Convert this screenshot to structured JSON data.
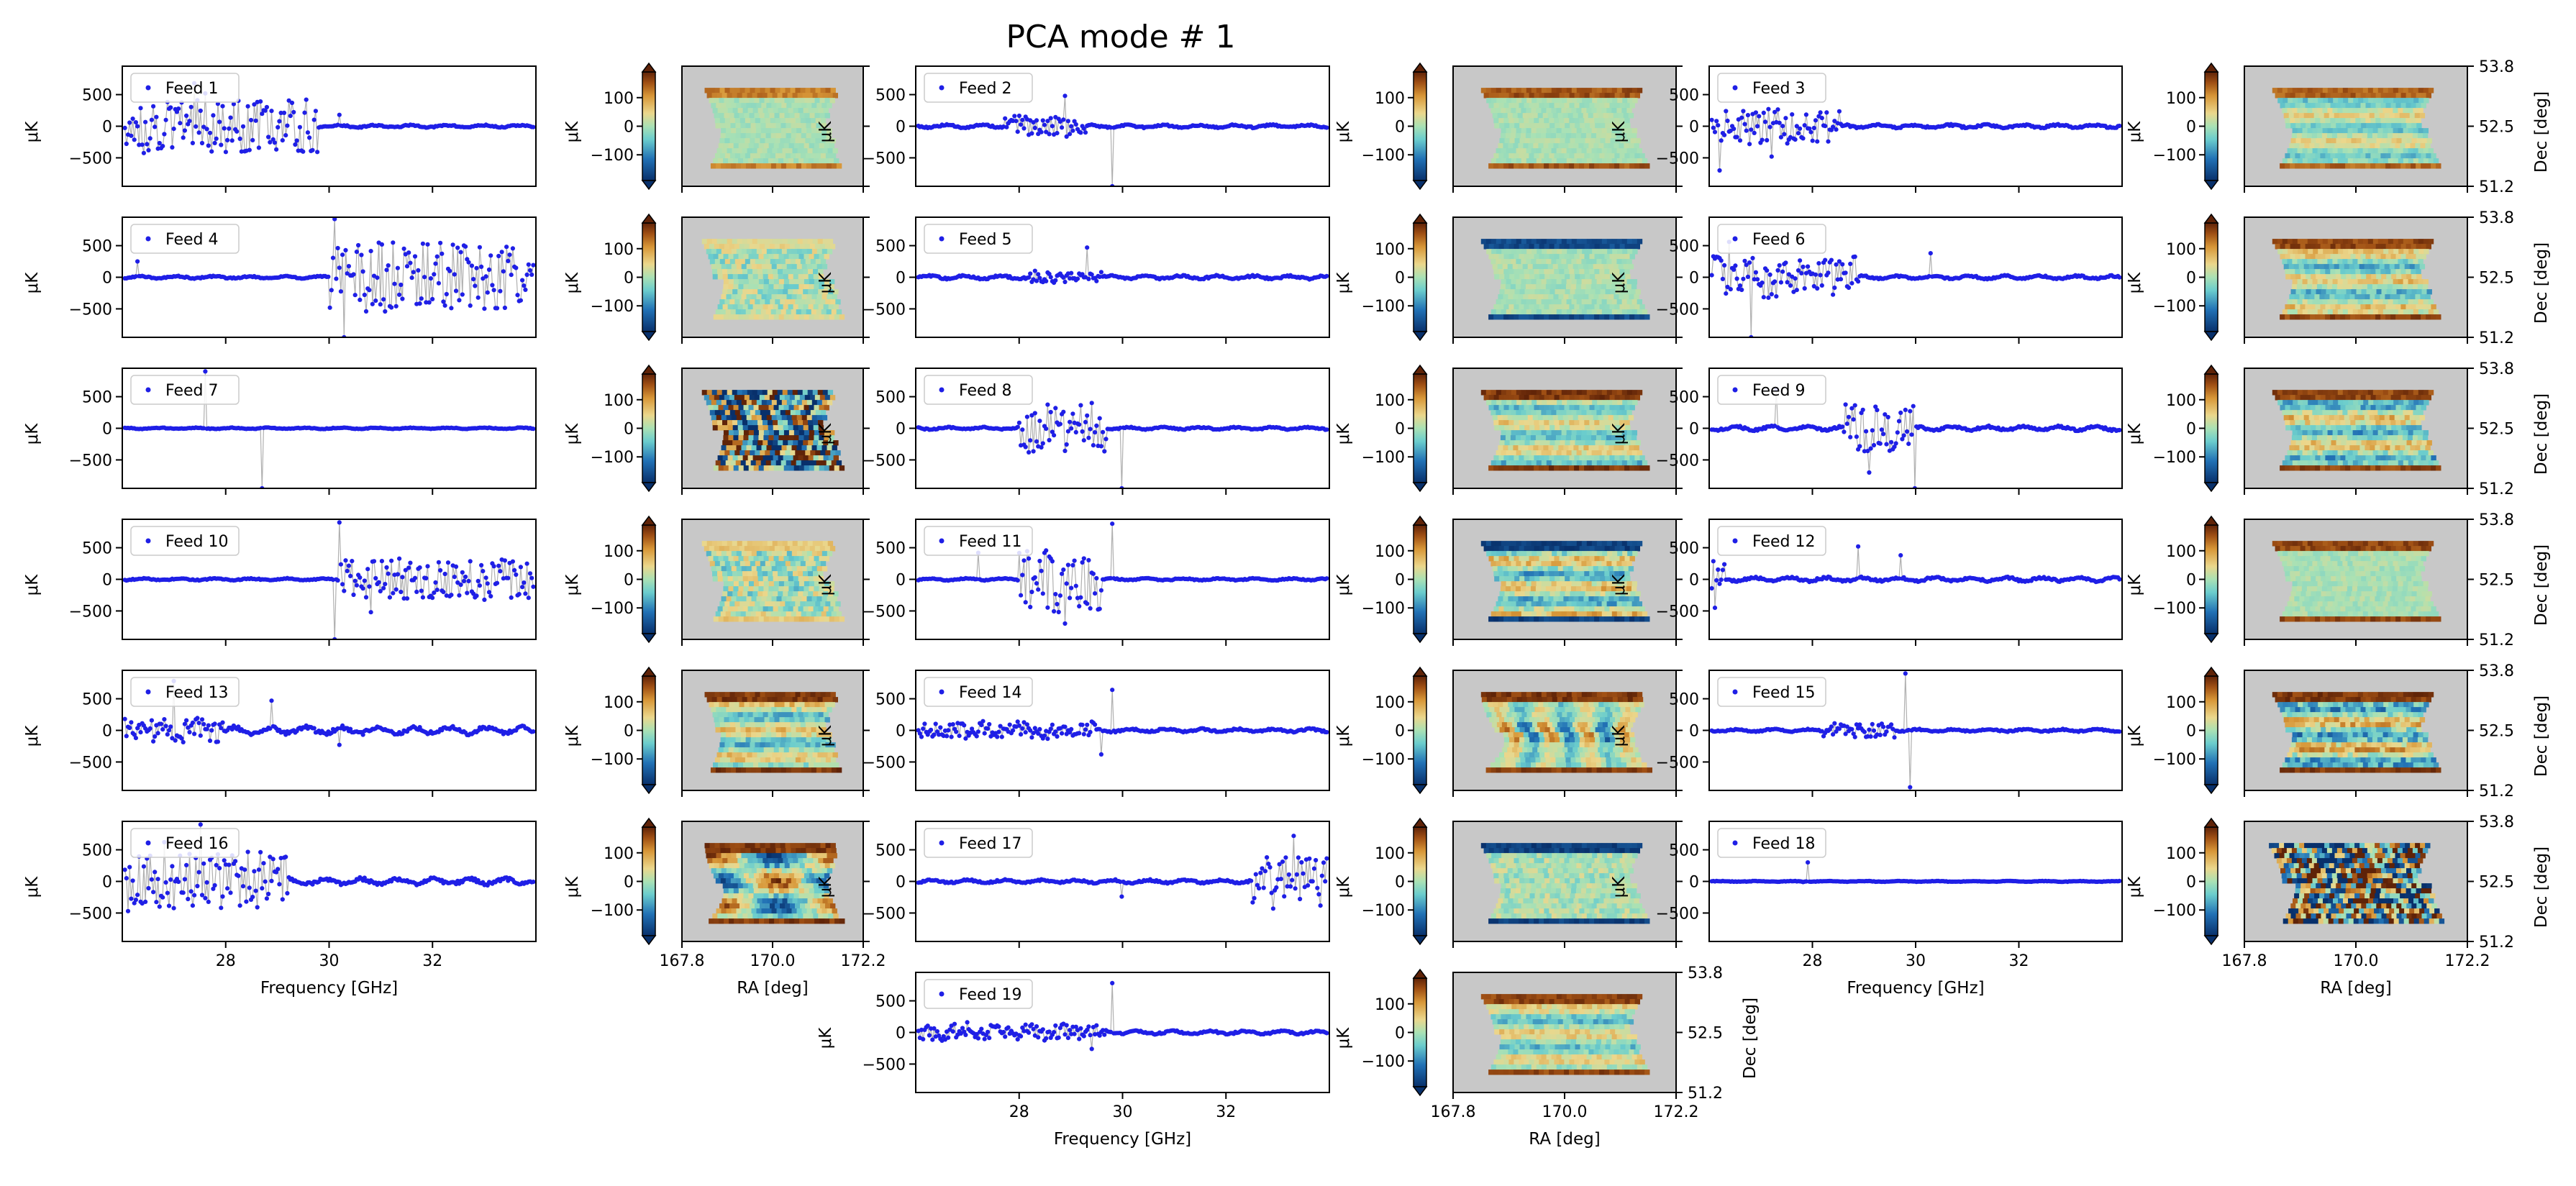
{
  "figure": {
    "title": "PCA mode # 1",
    "spectrum_axes": {
      "xlabel": "Frequency [GHz]",
      "ylabel": "μK",
      "xlim": [
        26.0,
        34.0
      ],
      "ylim": [
        -950,
        950
      ],
      "xticks": [
        "28",
        "30",
        "32"
      ],
      "yticks": [
        "500",
        "0",
        "−500"
      ]
    },
    "map_axes": {
      "xlabel": "RA [deg]",
      "ylabel": "Dec [deg]",
      "xticks": [
        "167.8",
        "170.0",
        "172.2"
      ],
      "yticks": [
        "53.8",
        "52.5",
        "51.2"
      ],
      "colorbar_label": "μK",
      "colorbar_ticks": [
        "100",
        "0",
        "−100"
      ],
      "colormap": "RdYlBu_r-like (dark blue → cyan → pale yellow → dark brown)",
      "background_color": "#c8c8c8"
    },
    "colors": {
      "points": "#1f1fe6",
      "line": "#b0b0b0"
    }
  },
  "chart_data": {
    "type": "scatter",
    "title": "PCA mode # 1",
    "xlabel": "Frequency [GHz]",
    "ylabel": "μK",
    "xlim": [
      26.0,
      34.0
    ],
    "ylim": [
      -950,
      950
    ],
    "series_kind": "per-feed PCA mode spectra (approximate shape, amplitude in μK)",
    "feeds": [
      {
        "name": "Feed 1",
        "legend": "Feed 1",
        "spec": {
          "base": 15,
          "region": [
            26.0,
            29.8
          ],
          "amp": 420,
          "spikes": [
            [
              27.4,
              680
            ],
            [
              27.6,
              520
            ],
            [
              30.2,
              180
            ]
          ]
        },
        "map": {
          "pattern": "flat",
          "amp": 20,
          "edge": 120
        }
      },
      {
        "name": "Feed 2",
        "legend": "Feed 2",
        "spec": {
          "base": 18,
          "region": [
            27.7,
            29.3
          ],
          "amp": 150,
          "spikes": [
            [
              28.9,
              480
            ],
            [
              29.8,
              -950
            ]
          ]
        },
        "map": {
          "pattern": "flat",
          "amp": 20,
          "edge": 150
        }
      },
      {
        "name": "Feed 3",
        "legend": "Feed 3",
        "spec": {
          "base": 20,
          "region": [
            26.0,
            28.6
          ],
          "amp": 260,
          "spikes": [
            [
              26.2,
              -700
            ],
            [
              27.2,
              -480
            ]
          ]
        },
        "map": {
          "pattern": "stripes",
          "amp": 60,
          "edge": 140
        }
      },
      {
        "name": "Feed 4",
        "legend": "Feed 4",
        "spec": {
          "base": 15,
          "region": [
            30.0,
            34.0
          ],
          "amp": 560,
          "spikes": [
            [
              26.3,
              250
            ],
            [
              30.1,
              920
            ],
            [
              30.3,
              -950
            ]
          ]
        },
        "map": {
          "pattern": "noisy",
          "amp": 55,
          "edge": 40
        }
      },
      {
        "name": "Feed 5",
        "legend": "Feed 5",
        "spec": {
          "base": 22,
          "region": [
            28.2,
            29.6
          ],
          "amp": 80,
          "spikes": [
            [
              29.3,
              470
            ]
          ]
        },
        "map": {
          "pattern": "flat",
          "amp": 25,
          "edge": -160
        }
      },
      {
        "name": "Feed 6",
        "legend": "Feed 6",
        "spec": {
          "base": 20,
          "region": [
            26.0,
            28.9
          ],
          "amp": 330,
          "spikes": [
            [
              26.4,
              560
            ],
            [
              26.8,
              -950
            ],
            [
              30.3,
              380
            ]
          ]
        },
        "map": {
          "pattern": "stripes",
          "amp": 80,
          "edge": 160
        }
      },
      {
        "name": "Feed 7",
        "legend": "Feed 7",
        "spec": {
          "base": 8,
          "region": [
            27.5,
            27.6
          ],
          "amp": 10,
          "spikes": [
            [
              27.6,
              900
            ],
            [
              28.7,
              -950
            ]
          ]
        },
        "map": {
          "pattern": "wild",
          "amp": 200,
          "edge": 0
        }
      },
      {
        "name": "Feed 8",
        "legend": "Feed 8",
        "spec": {
          "base": 15,
          "region": [
            28.0,
            29.7
          ],
          "amp": 380,
          "spikes": [
            [
              30.0,
              -950
            ],
            [
              28.2,
              -380
            ]
          ]
        },
        "map": {
          "pattern": "stripes",
          "amp": 70,
          "edge": 170
        }
      },
      {
        "name": "Feed 9",
        "legend": "Feed 9",
        "spec": {
          "base": 25,
          "region": [
            28.6,
            30.0
          ],
          "amp": 380,
          "spikes": [
            [
              27.3,
              620
            ],
            [
              29.1,
              -700
            ],
            [
              30.0,
              -950
            ]
          ]
        },
        "map": {
          "pattern": "stripes",
          "amp": 90,
          "edge": 160
        }
      },
      {
        "name": "Feed 10",
        "legend": "Feed 10",
        "spec": {
          "base": 12,
          "region": [
            30.2,
            34.0
          ],
          "amp": 320,
          "spikes": [
            [
              30.2,
              900
            ],
            [
              30.1,
              -950
            ],
            [
              30.8,
              -520
            ]
          ]
        },
        "map": {
          "pattern": "noisy",
          "amp": 70,
          "edge": 60
        }
      },
      {
        "name": "Feed 11",
        "legend": "Feed 11",
        "spec": {
          "base": 12,
          "region": [
            28.0,
            29.6
          ],
          "amp": 520,
          "spikes": [
            [
              29.8,
              880
            ],
            [
              27.2,
              420
            ],
            [
              28.9,
              -700
            ]
          ]
        },
        "map": {
          "pattern": "stripes",
          "amp": 90,
          "edge": -170
        }
      },
      {
        "name": "Feed 12",
        "legend": "Feed 12",
        "spec": {
          "base": 25,
          "region": [
            26.0,
            26.3
          ],
          "amp": 300,
          "spikes": [
            [
              26.1,
              -450
            ],
            [
              28.9,
              520
            ],
            [
              29.7,
              380
            ]
          ]
        },
        "map": {
          "pattern": "flat",
          "amp": 20,
          "edge": 160
        }
      },
      {
        "name": "Feed 13",
        "legend": "Feed 13",
        "spec": {
          "base": 45,
          "region": [
            26.0,
            28.0
          ],
          "amp": 160,
          "spikes": [
            [
              27.0,
              780
            ],
            [
              28.9,
              470
            ],
            [
              30.2,
              -230
            ]
          ]
        },
        "map": {
          "pattern": "stripes",
          "amp": 80,
          "edge": 170
        }
      },
      {
        "name": "Feed 14",
        "legend": "Feed 14",
        "spec": {
          "base": 20,
          "region": [
            26.0,
            29.5
          ],
          "amp": 120,
          "spikes": [
            [
              29.8,
              640
            ],
            [
              29.6,
              -380
            ]
          ]
        },
        "map": {
          "pattern": "wild2",
          "amp": 120,
          "edge": 170
        }
      },
      {
        "name": "Feed 15",
        "legend": "Feed 15",
        "spec": {
          "base": 15,
          "region": [
            28.2,
            29.6
          ],
          "amp": 110,
          "spikes": [
            [
              29.8,
              900
            ],
            [
              29.9,
              -900
            ]
          ]
        },
        "map": {
          "pattern": "stripes",
          "amp": 110,
          "edge": 170
        }
      },
      {
        "name": "Feed 16",
        "legend": "Feed 16",
        "spec": {
          "base": 40,
          "region": [
            26.0,
            29.2
          ],
          "amp": 450,
          "spikes": [
            [
              26.8,
              620
            ],
            [
              27.5,
              900
            ],
            [
              28.4,
              -320
            ]
          ]
        },
        "map": {
          "pattern": "strong",
          "amp": 160,
          "edge": 170
        }
      },
      {
        "name": "Feed 17",
        "legend": "Feed 17",
        "spec": {
          "base": 20,
          "region": [
            32.5,
            34.0
          ],
          "amp": 380,
          "spikes": [
            [
              32.9,
              -430
            ],
            [
              33.3,
              720
            ],
            [
              30.0,
              -240
            ]
          ]
        },
        "map": {
          "pattern": "flat",
          "amp": 40,
          "edge": -170
        }
      },
      {
        "name": "Feed 18",
        "legend": "Feed 18",
        "spec": {
          "base": 5,
          "region": [
            27.8,
            27.9
          ],
          "amp": 10,
          "spikes": [
            [
              27.9,
              300
            ]
          ]
        },
        "map": {
          "pattern": "wild",
          "amp": 200,
          "edge": 0
        }
      },
      {
        "name": "Feed 19",
        "legend": "Feed 19",
        "spec": {
          "base": 20,
          "region": [
            26.0,
            29.7
          ],
          "amp": 120,
          "spikes": [
            [
              29.8,
              780
            ],
            [
              29.4,
              -260
            ],
            [
              27.0,
              160
            ]
          ]
        },
        "map": {
          "pattern": "stripes",
          "amp": 70,
          "edge": 160
        }
      }
    ]
  }
}
